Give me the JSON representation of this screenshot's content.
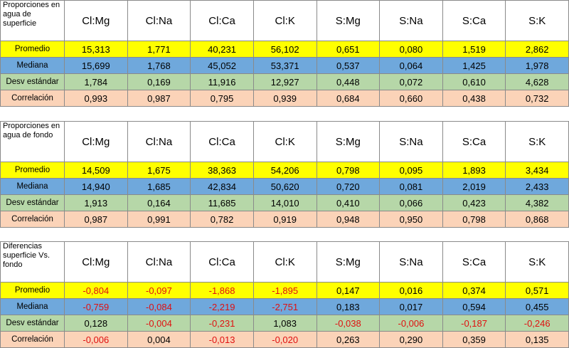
{
  "columns": [
    "Cl:Mg",
    "Cl:Na",
    "Cl:Ca",
    "Cl:K",
    "S:Mg",
    "S:Na",
    "S:Ca",
    "S:K"
  ],
  "tables": [
    {
      "heading": "Proporciones en agua de superficie",
      "rows": [
        {
          "label": "Promedio",
          "values": [
            "15,313",
            "1,771",
            "40,231",
            "56,102",
            "0,651",
            "0,080",
            "1,519",
            "2,862"
          ]
        },
        {
          "label": "Mediana",
          "values": [
            "15,699",
            "1,768",
            "45,052",
            "53,371",
            "0,537",
            "0,064",
            "1,425",
            "1,978"
          ]
        },
        {
          "label": "Desv estándar",
          "values": [
            "1,784",
            "0,169",
            "11,916",
            "12,927",
            "0,448",
            "0,072",
            "0,610",
            "4,628"
          ]
        },
        {
          "label": "Correlación",
          "values": [
            "0,993",
            "0,987",
            "0,795",
            "0,939",
            "0,684",
            "0,660",
            "0,438",
            "0,732"
          ]
        }
      ]
    },
    {
      "heading": "Proporciones en agua de fondo",
      "rows": [
        {
          "label": "Promedio",
          "values": [
            "14,509",
            "1,675",
            "38,363",
            "54,206",
            "0,798",
            "0,095",
            "1,893",
            "3,434"
          ]
        },
        {
          "label": "Mediana",
          "values": [
            "14,940",
            "1,685",
            "42,834",
            "50,620",
            "0,720",
            "0,081",
            "2,019",
            "2,433"
          ]
        },
        {
          "label": "Desv estándar",
          "values": [
            "1,913",
            "0,164",
            "11,685",
            "14,010",
            "0,410",
            "0,066",
            "0,423",
            "4,382"
          ]
        },
        {
          "label": "Correlación",
          "values": [
            "0,987",
            "0,991",
            "0,782",
            "0,919",
            "0,948",
            "0,950",
            "0,798",
            "0,868"
          ]
        }
      ]
    },
    {
      "heading": "Diferencias superficie Vs. fondo",
      "rows": [
        {
          "label": "Promedio",
          "values": [
            "-0,804",
            "-0,097",
            "-1,868",
            "-1,895",
            "0,147",
            "0,016",
            "0,374",
            "0,571"
          ]
        },
        {
          "label": "Mediana",
          "values": [
            "-0,759",
            "-0,084",
            "-2,219",
            "-2,751",
            "0,183",
            "0,017",
            "0,594",
            "0,455"
          ]
        },
        {
          "label": "Desv estándar",
          "values": [
            "0,128",
            "-0,004",
            "-0,231",
            "1,083",
            "-0,038",
            "-0,006",
            "-0,187",
            "-0,246"
          ]
        },
        {
          "label": "Correlación",
          "values": [
            "-0,006",
            "0,004",
            "-0,013",
            "-0,020",
            "0,263",
            "0,290",
            "0,359",
            "0,135"
          ]
        }
      ]
    }
  ],
  "negative_color": "#e01010"
}
